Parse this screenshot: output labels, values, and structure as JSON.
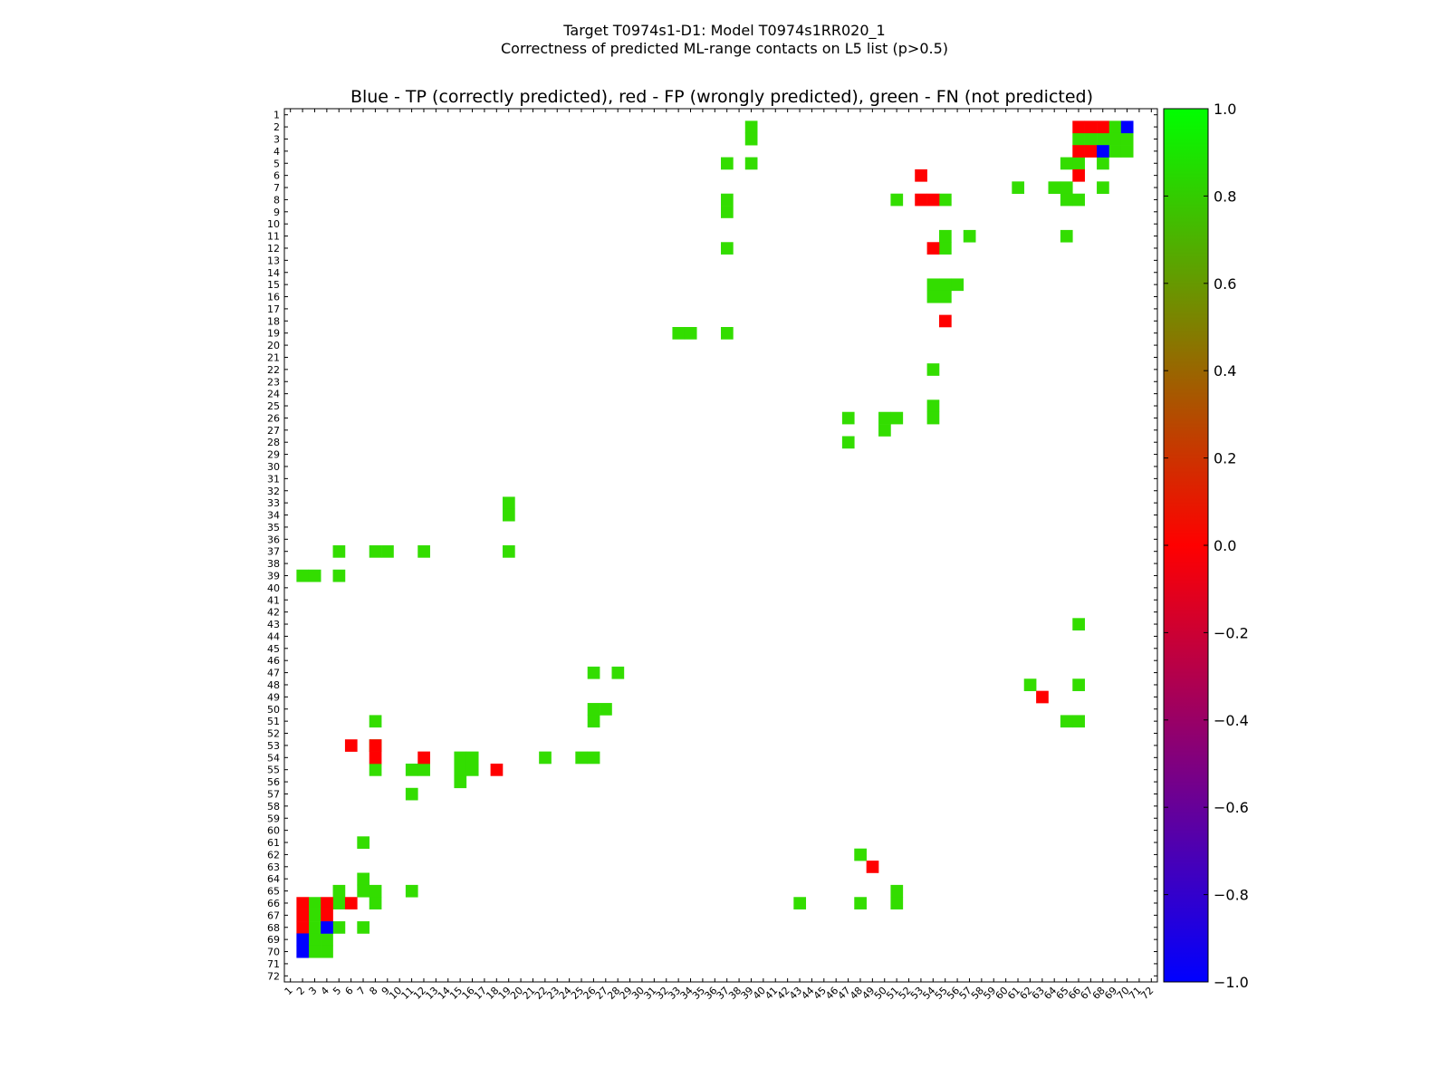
{
  "figure": {
    "title_line1": "Target T0974s1-D1: Model T0974s1RR020_1",
    "title_line2": "Correctness of predicted ML-range contacts on L5 list (p>0.5)"
  },
  "chart_data": {
    "type": "heatmap",
    "title": "Blue - TP (correctly predicted), red - FP (wrongly predicted), green - FN (not predicted)",
    "n": 72,
    "x_range": [
      1,
      72
    ],
    "y_range": [
      1,
      72
    ],
    "x_ticks": [
      1,
      2,
      3,
      4,
      5,
      6,
      7,
      8,
      9,
      10,
      11,
      12,
      13,
      14,
      15,
      16,
      17,
      18,
      19,
      20,
      21,
      22,
      23,
      24,
      25,
      26,
      27,
      28,
      29,
      30,
      31,
      32,
      33,
      34,
      35,
      36,
      37,
      38,
      39,
      40,
      41,
      42,
      43,
      44,
      45,
      46,
      47,
      48,
      49,
      50,
      51,
      52,
      53,
      54,
      55,
      56,
      57,
      58,
      59,
      60,
      61,
      62,
      63,
      64,
      65,
      66,
      67,
      68,
      69,
      70,
      71,
      72
    ],
    "y_ticks": [
      1,
      2,
      3,
      4,
      5,
      6,
      7,
      8,
      9,
      10,
      11,
      12,
      13,
      14,
      15,
      16,
      17,
      18,
      19,
      20,
      21,
      22,
      23,
      24,
      25,
      26,
      27,
      28,
      29,
      30,
      31,
      32,
      33,
      34,
      35,
      36,
      37,
      38,
      39,
      40,
      41,
      42,
      43,
      44,
      45,
      46,
      47,
      48,
      49,
      50,
      51,
      52,
      53,
      54,
      55,
      56,
      57,
      58,
      59,
      60,
      61,
      62,
      63,
      64,
      65,
      66,
      67,
      68,
      69,
      70,
      71,
      72
    ],
    "colorbar": {
      "min": -1.0,
      "max": 1.0,
      "ticks": [
        "1.0",
        "0.8",
        "0.6",
        "0.4",
        "0.2",
        "0.0",
        "−0.2",
        "−0.4",
        "−0.6",
        "−0.8",
        "−1.0"
      ],
      "tick_values": [
        1.0,
        0.8,
        0.6,
        0.4,
        0.2,
        0.0,
        -0.2,
        -0.4,
        -0.6,
        -0.8,
        -1.0
      ]
    },
    "legend": {
      "tp_value": -1,
      "fp_value": 0,
      "fn_value": 0.8
    },
    "cells": {
      "tp": [
        [
          70,
          2
        ],
        [
          69,
          2
        ],
        [
          68,
          4
        ],
        [
          4,
          68
        ],
        [
          2,
          70
        ]
      ],
      "fp": [
        [
          66,
          2
        ],
        [
          67,
          2
        ],
        [
          68,
          2
        ],
        [
          66,
          4
        ],
        [
          67,
          4
        ],
        [
          66,
          6
        ],
        [
          6,
          66
        ],
        [
          2,
          66
        ],
        [
          2,
          67
        ],
        [
          2,
          68
        ],
        [
          4,
          66
        ],
        [
          4,
          67
        ],
        [
          6,
          53
        ],
        [
          8,
          53
        ],
        [
          8,
          54
        ],
        [
          12,
          54
        ],
        [
          18,
          55
        ],
        [
          53,
          6
        ],
        [
          53,
          8
        ],
        [
          54,
          8
        ],
        [
          54,
          12
        ],
        [
          55,
          18
        ],
        [
          49,
          63
        ],
        [
          63,
          49
        ]
      ],
      "fn": [
        [
          2,
          39
        ],
        [
          3,
          39
        ],
        [
          5,
          37
        ],
        [
          5,
          39
        ],
        [
          8,
          37
        ],
        [
          9,
          37
        ],
        [
          12,
          37
        ],
        [
          19,
          37
        ],
        [
          19,
          33
        ],
        [
          19,
          34
        ],
        [
          2,
          69
        ],
        [
          3,
          66
        ],
        [
          3,
          67
        ],
        [
          3,
          68
        ],
        [
          3,
          69
        ],
        [
          3,
          70
        ],
        [
          4,
          69
        ],
        [
          4,
          70
        ],
        [
          5,
          65
        ],
        [
          5,
          66
        ],
        [
          5,
          68
        ],
        [
          7,
          61
        ],
        [
          7,
          64
        ],
        [
          7,
          65
        ],
        [
          7,
          68
        ],
        [
          8,
          51
        ],
        [
          8,
          55
        ],
        [
          8,
          65
        ],
        [
          8,
          66
        ],
        [
          11,
          55
        ],
        [
          11,
          57
        ],
        [
          11,
          65
        ],
        [
          12,
          55
        ],
        [
          15,
          54
        ],
        [
          15,
          55
        ],
        [
          15,
          56
        ],
        [
          16,
          54
        ],
        [
          16,
          55
        ],
        [
          22,
          54
        ],
        [
          25,
          54
        ],
        [
          26,
          54
        ],
        [
          26,
          47
        ],
        [
          26,
          50
        ],
        [
          26,
          51
        ],
        [
          27,
          50
        ],
        [
          28,
          47
        ],
        [
          33,
          19
        ],
        [
          34,
          19
        ],
        [
          37,
          19
        ],
        [
          37,
          5
        ],
        [
          37,
          8
        ],
        [
          37,
          9
        ],
        [
          37,
          12
        ],
        [
          39,
          2
        ],
        [
          39,
          3
        ],
        [
          39,
          5
        ],
        [
          43,
          66
        ],
        [
          47,
          26
        ],
        [
          47,
          28
        ],
        [
          48,
          62
        ],
        [
          48,
          66
        ],
        [
          50,
          26
        ],
        [
          50,
          27
        ],
        [
          51,
          26
        ],
        [
          51,
          8
        ],
        [
          51,
          65
        ],
        [
          51,
          66
        ],
        [
          53,
          8
        ],
        [
          54,
          15
        ],
        [
          54,
          16
        ],
        [
          54,
          22
        ],
        [
          54,
          25
        ],
        [
          54,
          26
        ],
        [
          55,
          8
        ],
        [
          55,
          11
        ],
        [
          55,
          12
        ],
        [
          55,
          15
        ],
        [
          55,
          16
        ],
        [
          56,
          15
        ],
        [
          57,
          11
        ],
        [
          61,
          7
        ],
        [
          62,
          48
        ],
        [
          64,
          7
        ],
        [
          65,
          5
        ],
        [
          65,
          7
        ],
        [
          65,
          8
        ],
        [
          65,
          11
        ],
        [
          65,
          51
        ],
        [
          66,
          3
        ],
        [
          66,
          5
        ],
        [
          66,
          8
        ],
        [
          66,
          43
        ],
        [
          66,
          48
        ],
        [
          66,
          51
        ],
        [
          67,
          3
        ],
        [
          68,
          3
        ],
        [
          68,
          5
        ],
        [
          68,
          7
        ],
        [
          69,
          3
        ],
        [
          69,
          4
        ],
        [
          70,
          3
        ],
        [
          70,
          4
        ]
      ]
    }
  }
}
